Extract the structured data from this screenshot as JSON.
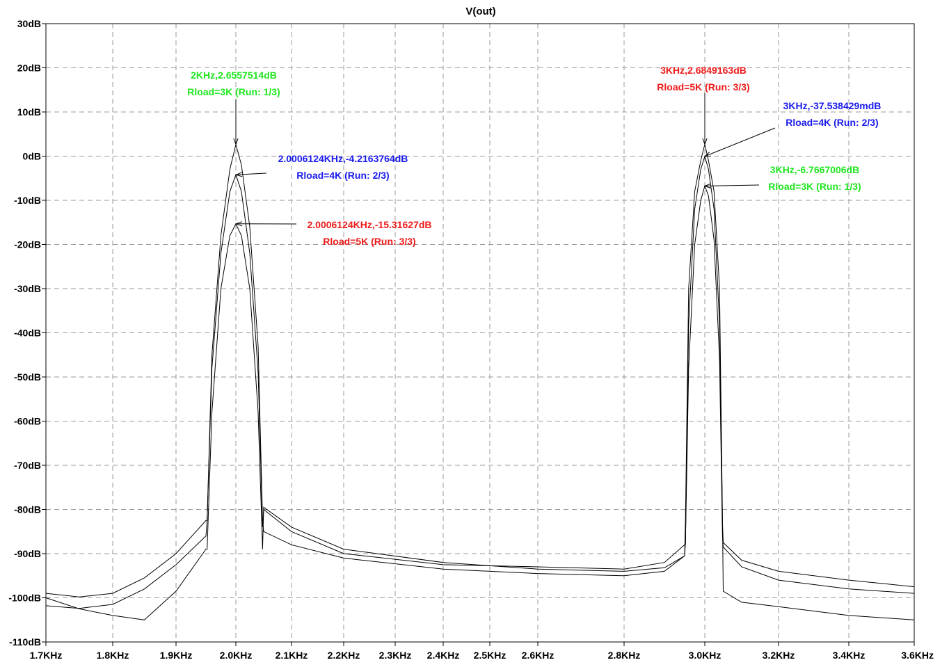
{
  "window": {
    "title": "V(out)"
  },
  "colors": {
    "green": "#1ee61e",
    "blue": "#1a1aee",
    "red": "#ee1a1a",
    "trace": "#000000",
    "grid": "#9a9a9a"
  },
  "chart_data": {
    "type": "line",
    "title": "V(out)",
    "xlabel": "",
    "ylabel": "",
    "x_unit": "Hz",
    "y_unit": "dB",
    "xlim": [
      1700,
      3600
    ],
    "ylim": [
      -110,
      30
    ],
    "grid": true,
    "x_ticks": [
      {
        "value": 1700,
        "label": "1.7KHz"
      },
      {
        "value": 1800,
        "label": "1.8KHz"
      },
      {
        "value": 1900,
        "label": "1.9KHz"
      },
      {
        "value": 2000,
        "label": "2.0KHz"
      },
      {
        "value": 2100,
        "label": "2.1KHz"
      },
      {
        "value": 2200,
        "label": "2.2KHz"
      },
      {
        "value": 2300,
        "label": "2.3KHz"
      },
      {
        "value": 2400,
        "label": "2.4KHz"
      },
      {
        "value": 2500,
        "label": "2.5KHz"
      },
      {
        "value": 2600,
        "label": "2.6KHz"
      },
      {
        "value": 2800,
        "label": "2.8KHz"
      },
      {
        "value": 3000,
        "label": "3.0KHz"
      },
      {
        "value": 3200,
        "label": "3.2KHz"
      },
      {
        "value": 3400,
        "label": "3.4KHz"
      },
      {
        "value": 3600,
        "label": "3.6KHz"
      }
    ],
    "y_ticks": [
      {
        "value": 30,
        "label": "30dB"
      },
      {
        "value": 20,
        "label": "20dB"
      },
      {
        "value": 10,
        "label": "10dB"
      },
      {
        "value": 0,
        "label": "0dB"
      },
      {
        "value": -10,
        "label": "-10dB"
      },
      {
        "value": -20,
        "label": "-20dB"
      },
      {
        "value": -30,
        "label": "-30dB"
      },
      {
        "value": -40,
        "label": "-40dB"
      },
      {
        "value": -50,
        "label": "-50dB"
      },
      {
        "value": -60,
        "label": "-60dB"
      },
      {
        "value": -70,
        "label": "-70dB"
      },
      {
        "value": -80,
        "label": "-80dB"
      },
      {
        "value": -90,
        "label": "-90dB"
      },
      {
        "value": -100,
        "label": "-100dB"
      },
      {
        "value": -110,
        "label": "-110dB"
      }
    ],
    "series": [
      {
        "id": "run1",
        "x": [
          1700,
          1750,
          1800,
          1850,
          1900,
          1950,
          1952,
          1960,
          1975,
          1990,
          2000,
          2010,
          2025,
          2040,
          2048,
          2050,
          2100,
          2200,
          2400,
          2600,
          2800,
          2900,
          2950,
          2952,
          2960,
          2975,
          2990,
          3000,
          3010,
          3025,
          3040,
          3048,
          3050,
          3100,
          3200,
          3400,
          3600
        ],
        "y": [
          -101.8,
          -102.4,
          -101.5,
          -98,
          -92.5,
          -86,
          -82.5,
          -45,
          -18,
          -3,
          2.66,
          -2,
          -16,
          -43,
          -82.5,
          -85,
          -88,
          -91,
          -93.5,
          -94.5,
          -95,
          -94,
          -90.5,
          -87.5,
          -48,
          -20,
          -10,
          -6.77,
          -9,
          -19,
          -46,
          -86,
          -88.5,
          -93,
          -96,
          -98,
          -99
        ]
      },
      {
        "id": "run2",
        "x": [
          1700,
          1750,
          1800,
          1850,
          1900,
          1950,
          1952,
          1960,
          1975,
          1990,
          2000,
          2010,
          2025,
          2040,
          2048,
          2050,
          2100,
          2200,
          2400,
          2600,
          2800,
          2900,
          2950,
          2952,
          2960,
          2975,
          2990,
          3000,
          3010,
          3025,
          3040,
          3048,
          3050,
          3100,
          3200,
          3400,
          3600
        ],
        "y": [
          -99,
          -99.8,
          -99,
          -95.5,
          -90,
          -82.5,
          -82.5,
          -48,
          -22,
          -8,
          -4.22,
          -8,
          -22,
          -49,
          -84,
          -80,
          -85,
          -90,
          -92.5,
          -93,
          -93.5,
          -92,
          -88,
          -88,
          -38,
          -12,
          -3,
          -0.04,
          -3,
          -12,
          -38,
          -83,
          -87.5,
          -91.5,
          -94,
          -96,
          -97.5
        ]
      },
      {
        "id": "run3",
        "x": [
          1700,
          1750,
          1800,
          1850,
          1900,
          1950,
          1952,
          1960,
          1975,
          1990,
          2000,
          2010,
          2025,
          2040,
          2048,
          2050,
          2100,
          2200,
          2400,
          2600,
          2800,
          2900,
          2950,
          2952,
          2960,
          2975,
          2990,
          3000,
          3010,
          3025,
          3040,
          3048,
          3050,
          3100,
          3200,
          3400,
          3600
        ],
        "y": [
          -100,
          -102.5,
          -104,
          -105,
          -98.5,
          -89,
          -89,
          -58,
          -30,
          -18,
          -15.32,
          -18,
          -30,
          -58,
          -89,
          -79.5,
          -84,
          -89,
          -92,
          -93.5,
          -94,
          -93.2,
          -90.5,
          -82.5,
          -30,
          -8,
          -1,
          2.68,
          -1,
          -8,
          -30,
          -82,
          -98.5,
          -101,
          -102,
          -104,
          -105
        ]
      }
    ],
    "annotations": [
      {
        "id": "a1",
        "lines": [
          "2KHz,2.6557514dB",
          "Rload=3K  (Run: 1/3)"
        ],
        "color": "green",
        "x": 2000,
        "y": 2.6557514
      },
      {
        "id": "a2",
        "lines": [
          "2.0006124KHz,-4.2163764dB",
          "Rload=4K  (Run: 2/3)"
        ],
        "color": "blue",
        "x": 2000.6124,
        "y": -4.2163764
      },
      {
        "id": "a3",
        "lines": [
          "2.0006124KHz,-15.31627dB",
          "Rload=5K  (Run: 3/3)"
        ],
        "color": "red",
        "x": 2000.6124,
        "y": -15.31627
      },
      {
        "id": "a4",
        "lines": [
          "3KHz,2.6849163dB",
          "Rload=5K  (Run: 3/3)"
        ],
        "color": "red",
        "x": 3000,
        "y": 2.6849163
      },
      {
        "id": "a5",
        "lines": [
          "3KHz,-37.538429mdB",
          "Rload=4K  (Run: 2/3)"
        ],
        "color": "blue",
        "x": 3000,
        "y": -0.037538429
      },
      {
        "id": "a6",
        "lines": [
          "3KHz,-6.7667006dB",
          "Rload=3K  (Run: 1/3)"
        ],
        "color": "green",
        "x": 3000,
        "y": -6.7667006
      }
    ]
  }
}
